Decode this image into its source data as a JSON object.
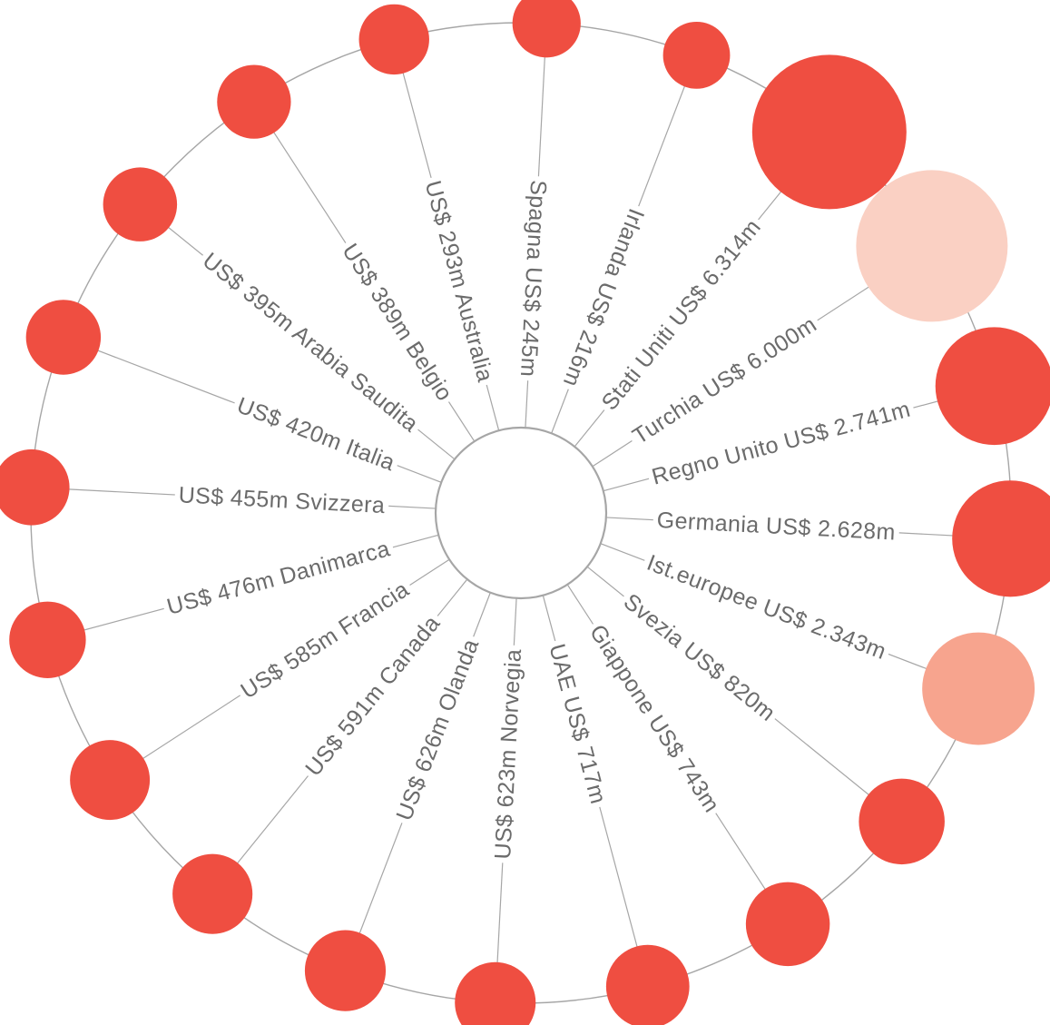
{
  "chart_data": {
    "type": "radial-bubble",
    "title": "",
    "unit": "US$ m",
    "items": [
      {
        "country": "Stati Uniti",
        "text": "Stati Uniti US$ 6.314m",
        "value": 6314,
        "color": "#ef4e41"
      },
      {
        "country": "Turchia",
        "text": "Turchia US$ 6.000m",
        "value": 6000,
        "color": "#fad0c3"
      },
      {
        "country": "Regno Unito",
        "text": "Regno Unito US$ 2.741m",
        "value": 2741,
        "color": "#ef4e41"
      },
      {
        "country": "Germania",
        "text": "Germania US$ 2.628m",
        "value": 2628,
        "color": "#ef4e41"
      },
      {
        "country": "Ist.europee",
        "text": "Ist.europee US$ 2.343m",
        "value": 2343,
        "color": "#f7a48e"
      },
      {
        "country": "Svezia",
        "text": "Svezia US$ 820m",
        "value": 820,
        "color": "#ef4e41"
      },
      {
        "country": "Giappone",
        "text": "Giappone US$ 743m",
        "value": 743,
        "color": "#ef4e41"
      },
      {
        "country": "UAE",
        "text": "UAE US$ 717m",
        "value": 717,
        "color": "#ef4e41"
      },
      {
        "country": "Norvegia",
        "text": "US$ 623m Norvegia",
        "value": 623,
        "color": "#ef4e41"
      },
      {
        "country": "Olanda",
        "text": "US$ 626m Olanda",
        "value": 626,
        "color": "#ef4e41"
      },
      {
        "country": "Canada",
        "text": "US$ 591m Canada",
        "value": 591,
        "color": "#ef4e41"
      },
      {
        "country": "Francia",
        "text": "US$ 585m Francia",
        "value": 585,
        "color": "#ef4e41"
      },
      {
        "country": "Danimarca",
        "text": "US$ 476m Danimarca",
        "value": 476,
        "color": "#ef4e41"
      },
      {
        "country": "Svizzera",
        "text": "US$ 455m Svizzera",
        "value": 455,
        "color": "#ef4e41"
      },
      {
        "country": "Italia",
        "text": "US$ 420m Italia",
        "value": 420,
        "color": "#ef4e41"
      },
      {
        "country": "Arabia Saudita",
        "text": "US$ 395m Arabia Saudita",
        "value": 395,
        "color": "#ef4e41"
      },
      {
        "country": "Belgio",
        "text": "US$ 389m Belgio",
        "value": 389,
        "color": "#ef4e41"
      },
      {
        "country": "Australia",
        "text": "US$ 293m Australia",
        "value": 293,
        "color": "#ef4e41"
      },
      {
        "country": "Spagna",
        "text": "Spagna US$ 245m",
        "value": 245,
        "color": "#ef4e41"
      },
      {
        "country": "Irlanda",
        "text": "Irlanda US$ 216m",
        "value": 216,
        "color": "#ef4e41"
      }
    ]
  }
}
